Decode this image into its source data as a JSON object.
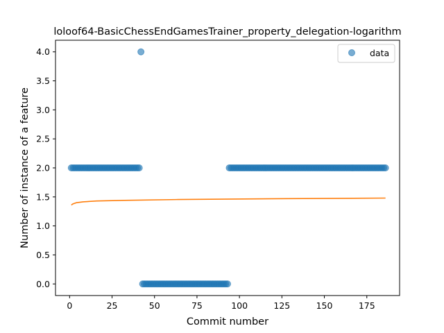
{
  "chart_data": {
    "type": "scatter",
    "title": "loloof64-BasicChessEndGamesTrainer_property_delegation-logarithm",
    "xlabel": "Commit number",
    "ylabel": "Number of instance of a feature",
    "xlim": [
      -8.3,
      194.3
    ],
    "ylim": [
      -0.2,
      4.2
    ],
    "xticks": [
      0,
      25,
      50,
      75,
      100,
      125,
      150,
      175
    ],
    "yticks": [
      0.0,
      0.5,
      1.0,
      1.5,
      2.0,
      2.5,
      3.0,
      3.5,
      4.0
    ],
    "ytick_labels": [
      "0.0",
      "0.5",
      "1.0",
      "1.5",
      "2.0",
      "2.5",
      "3.0",
      "3.5",
      "4.0"
    ],
    "grid": false,
    "legend": {
      "position": "top-right",
      "entries": [
        "data"
      ]
    },
    "series": [
      {
        "name": "data",
        "kind": "scatter",
        "color": "#1f77b4",
        "segments": [
          {
            "x_from": 1,
            "x_to": 41,
            "y": 2
          },
          {
            "x_from": 42,
            "x_to": 42,
            "y": 4
          },
          {
            "x_from": 43,
            "x_to": 93,
            "y": 0
          },
          {
            "x_from": 94,
            "x_to": 186,
            "y": 2
          }
        ]
      },
      {
        "name": "",
        "kind": "line",
        "color": "#ff7f0e",
        "fit": "logarithmic",
        "x": [
          1,
          2,
          4,
          8,
          16,
          32,
          64,
          128,
          186
        ],
        "y": [
          1.36,
          1.38,
          1.4,
          1.415,
          1.43,
          1.44,
          1.455,
          1.47,
          1.48
        ]
      }
    ]
  }
}
